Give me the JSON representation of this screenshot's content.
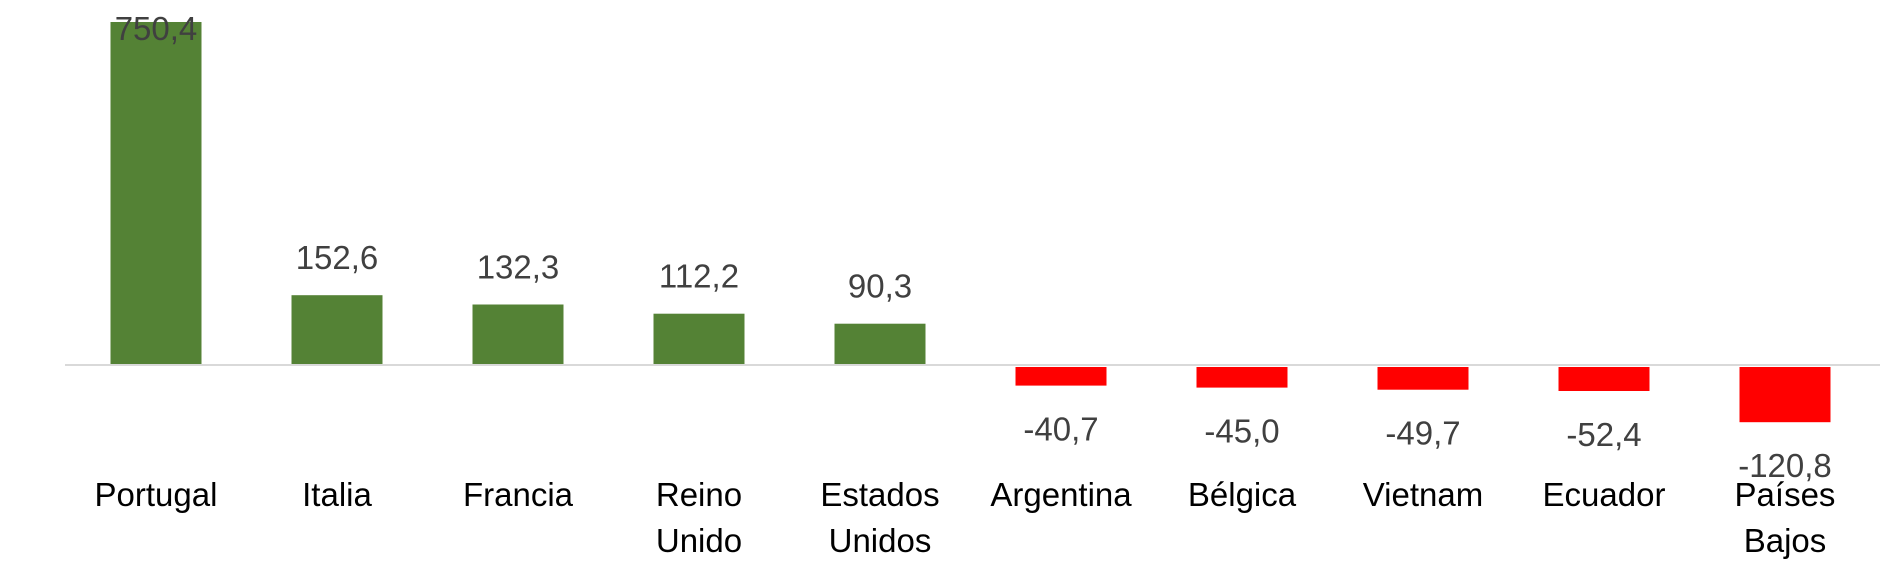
{
  "chart_data": {
    "type": "bar",
    "categories": [
      [
        "Portugal"
      ],
      [
        "Italia"
      ],
      [
        "Francia"
      ],
      [
        "Reino",
        "Unido"
      ],
      [
        "Estados",
        "Unidos"
      ],
      [
        "Argentina"
      ],
      [
        "Bélgica"
      ],
      [
        "Vietnam"
      ],
      [
        "Ecuador"
      ],
      [
        "Países",
        "Bajos"
      ]
    ],
    "values": [
      750.4,
      152.6,
      132.3,
      112.2,
      90.3,
      -40.7,
      -45.0,
      -49.7,
      -52.4,
      -120.8
    ],
    "data_labels": [
      "750,4",
      "152,6",
      "132,3",
      "112,2",
      "90,3",
      "-40,7",
      "-45,0",
      "-49,7",
      "-52,4",
      "-120,8"
    ],
    "title": "",
    "xlabel": "",
    "ylabel": "",
    "ylim": [
      -160,
      800
    ],
    "grid": false,
    "legend": "none",
    "colors": {
      "positive": "#548235",
      "negative": "#ff0000",
      "axis": "#d9d9d9",
      "value_text": "#404040",
      "category_text": "#000000"
    }
  }
}
